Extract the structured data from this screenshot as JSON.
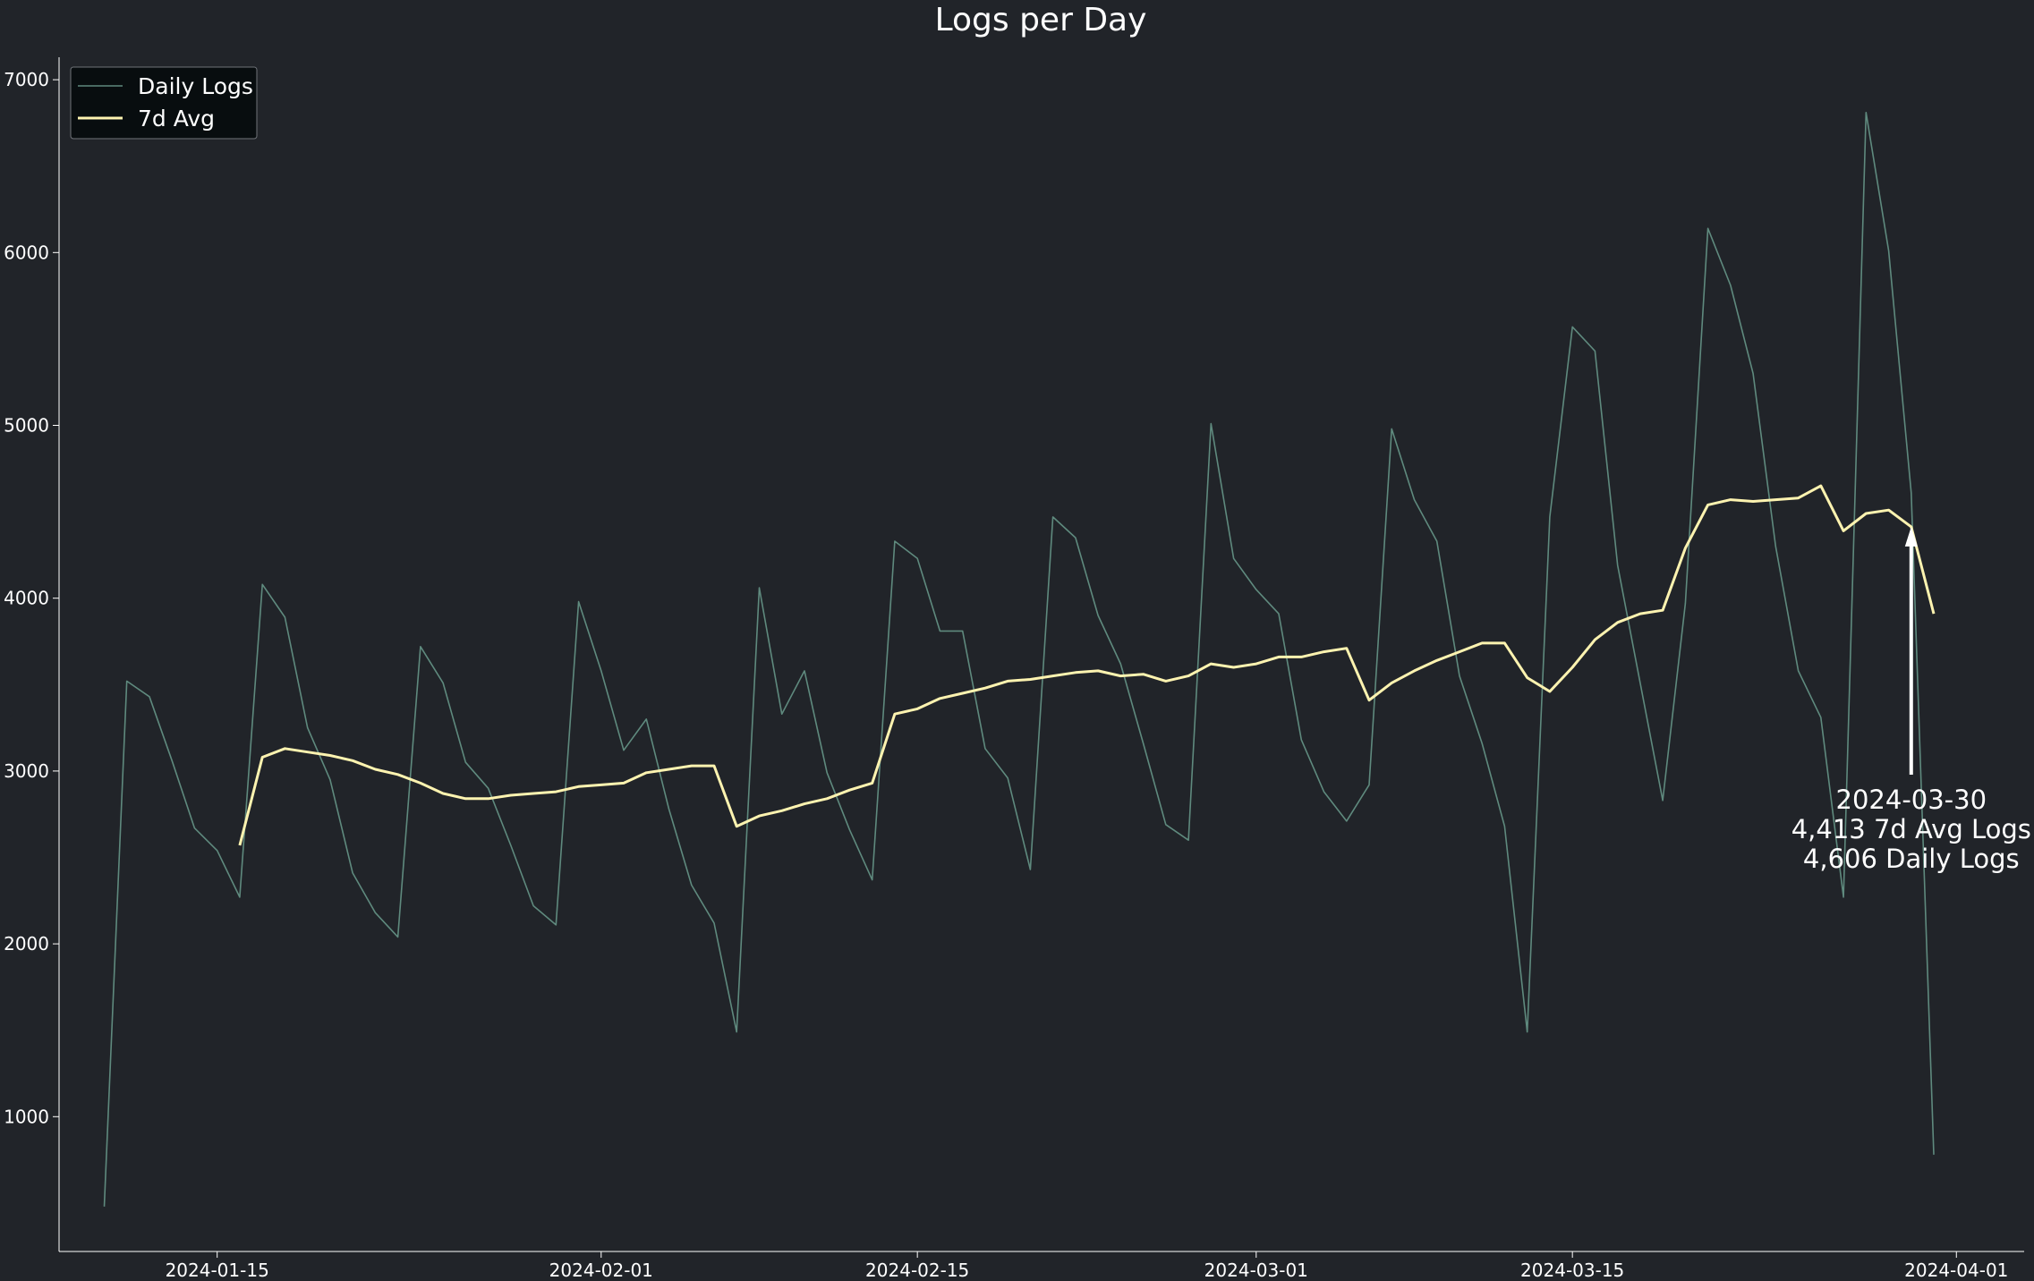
{
  "chart_data": {
    "type": "line",
    "title": "Logs per Day",
    "xlabel": "",
    "ylabel": "",
    "start_date": "2024-01-10",
    "x_ticks": [
      "2024-01-15",
      "2024-02-01",
      "2024-02-15",
      "2024-03-01",
      "2024-03-15",
      "2024-04-01"
    ],
    "y_ticks": [
      1000,
      2000,
      3000,
      4000,
      5000,
      6000,
      7000
    ],
    "ylim": [
      220,
      7130
    ],
    "xlim": [
      "2024-01-08",
      "2024-04-04"
    ],
    "grid": false,
    "legend_position": "top-left",
    "series": [
      {
        "name": "Daily Logs",
        "color": "#5f8a7e",
        "values": [
          480,
          3520,
          3430,
          3060,
          2670,
          2540,
          2270,
          4080,
          3890,
          3250,
          2950,
          2410,
          2180,
          2040,
          3720,
          3510,
          3050,
          2900,
          2570,
          2220,
          2110,
          3980,
          3580,
          3120,
          3300,
          2780,
          2340,
          2120,
          1490,
          4060,
          3330,
          3580,
          2990,
          2660,
          2370,
          4330,
          4230,
          3810,
          3810,
          3130,
          2960,
          2430,
          4470,
          4350,
          3900,
          3620,
          3160,
          2690,
          2600,
          5010,
          4230,
          4050,
          3910,
          3180,
          2880,
          2710,
          2920,
          4980,
          4570,
          4330,
          3550,
          3160,
          2680,
          1490,
          4470,
          5570,
          5430,
          4190,
          3510,
          2830,
          3970,
          6140,
          5810,
          5300,
          4300,
          3580,
          3310,
          2270,
          6810,
          6010,
          4610,
          780
        ]
      },
      {
        "name": "7d Avg",
        "color": "#fdf3b0",
        "start_index": 6,
        "values": [
          2570,
          3080,
          3130,
          3110,
          3090,
          3060,
          3010,
          2980,
          2930,
          2870,
          2840,
          2840,
          2860,
          2870,
          2880,
          2910,
          2920,
          2930,
          2990,
          3010,
          3030,
          3030,
          2680,
          2740,
          2770,
          2810,
          2840,
          2890,
          2930,
          3330,
          3360,
          3420,
          3450,
          3480,
          3520,
          3530,
          3550,
          3570,
          3580,
          3550,
          3560,
          3520,
          3550,
          3620,
          3600,
          3620,
          3660,
          3660,
          3690,
          3710,
          3410,
          3510,
          3580,
          3640,
          3690,
          3740,
          3740,
          3540,
          3460,
          3600,
          3760,
          3860,
          3910,
          3930,
          4290,
          4540,
          4570,
          4560,
          4570,
          4580,
          4650,
          4390,
          4490,
          4510,
          4413,
          3910
        ]
      }
    ],
    "annotation": {
      "date": "2024-03-30",
      "value": 4413,
      "lines": [
        "2024-03-30",
        "4,413 7d Avg Logs",
        "4,606 Daily Logs"
      ]
    }
  }
}
